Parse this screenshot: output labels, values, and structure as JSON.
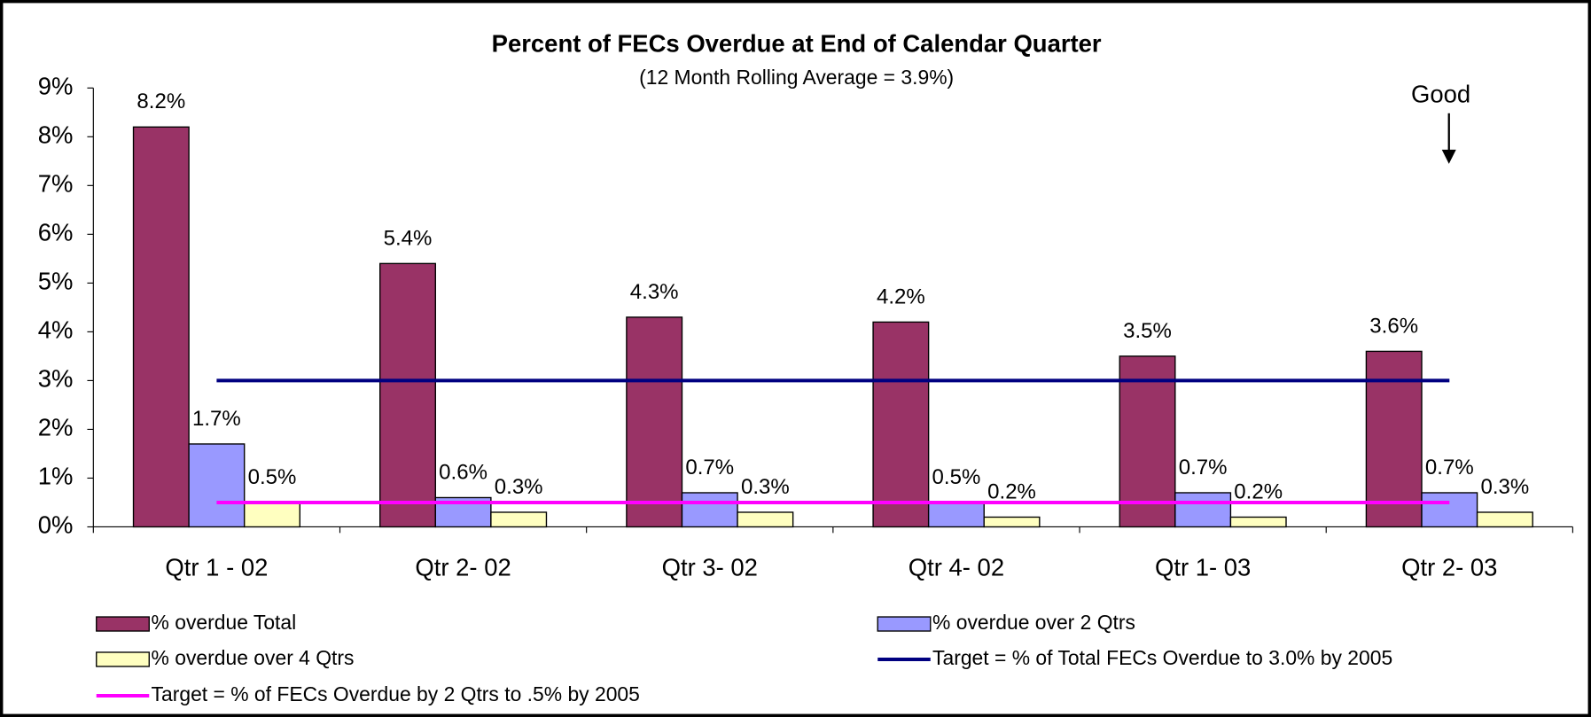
{
  "chart_data": {
    "type": "bar",
    "title": "Percent of FECs Overdue at End of Calendar Quarter",
    "subtitle": "(12 Month Rolling Average = 3.9%)",
    "annotation": "Good",
    "categories": [
      "Qtr 1 - 02",
      "Qtr 2- 02",
      "Qtr 3- 02",
      "Qtr 4- 02",
      "Qtr 1- 03",
      "Qtr 2- 03"
    ],
    "series": [
      {
        "name": "% overdue Total",
        "type": "bar",
        "color": "#993366",
        "values": [
          8.2,
          5.4,
          4.3,
          4.2,
          3.5,
          3.6
        ],
        "value_labels": [
          "8.2%",
          "5.4%",
          "4.3%",
          "4.2%",
          "3.5%",
          "3.6%"
        ]
      },
      {
        "name": "% overdue over 2 Qtrs",
        "type": "bar",
        "color": "#9999ff",
        "values": [
          1.7,
          0.6,
          0.7,
          0.5,
          0.7,
          0.7
        ],
        "value_labels": [
          "1.7%",
          "0.6%",
          "0.7%",
          "0.5%",
          "0.7%",
          "0.7%"
        ]
      },
      {
        "name": "% overdue over 4 Qtrs",
        "type": "bar",
        "color": "#ffffc0",
        "values": [
          0.5,
          0.3,
          0.3,
          0.2,
          0.2,
          0.3
        ],
        "value_labels": [
          "0.5%",
          "0.3%",
          "0.3%",
          "0.2%",
          "0.2%",
          "0.3%"
        ]
      },
      {
        "name": "Target = % of Total FECs Overdue to 3.0% by 2005",
        "type": "line",
        "color": "#000080",
        "values": [
          3,
          3,
          3,
          3,
          3,
          3
        ]
      },
      {
        "name": "Target = % of FECs Overdue by 2 Qtrs to .5% by 2005",
        "type": "line",
        "color": "#ff00ff",
        "values": [
          0.5,
          0.5,
          0.5,
          0.5,
          0.5,
          0.5
        ]
      }
    ],
    "ylim": [
      0,
      9
    ],
    "yticks": [
      {
        "value": 0,
        "label": "0%"
      },
      {
        "value": 1,
        "label": "1%"
      },
      {
        "value": 2,
        "label": "2%"
      },
      {
        "value": 3,
        "label": "3%"
      },
      {
        "value": 4,
        "label": "4%"
      },
      {
        "value": 5,
        "label": "5%"
      },
      {
        "value": 6,
        "label": "6%"
      },
      {
        "value": 7,
        "label": "7%"
      },
      {
        "value": 8,
        "label": "8%"
      },
      {
        "value": 9,
        "label": "9%"
      }
    ],
    "legend": "bottom"
  }
}
